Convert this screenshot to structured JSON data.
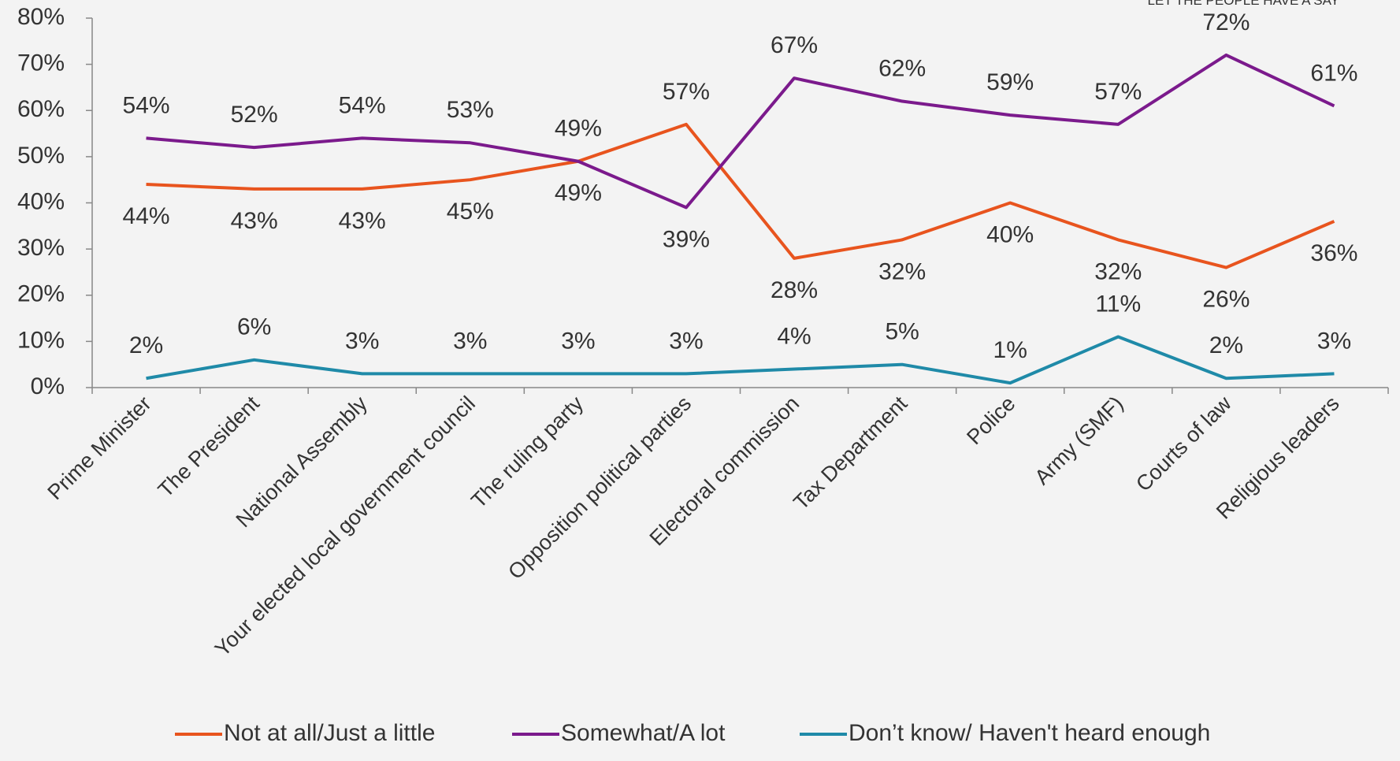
{
  "chart_data": {
    "type": "line",
    "annotations": [
      "LET THE PEOPLE HAVE A SAY"
    ],
    "categories": [
      "Prime Minister",
      "The President",
      "National Assembly",
      "Your elected local government council",
      "The ruling party",
      "Opposition political parties",
      "Electoral commission",
      "Tax Department",
      "Police",
      "Army (SMF)",
      "Courts of law",
      "Religious leaders"
    ],
    "series": [
      {
        "name": "Not at all/Just a little",
        "color": "#e8541e",
        "values": [
          44,
          43,
          43,
          45,
          49,
          57,
          28,
          32,
          40,
          32,
          26,
          36
        ],
        "value_labels": [
          "44%",
          "43%",
          "43%",
          "45%",
          "49%",
          "57%",
          "28%",
          "32%",
          "40%",
          "32%",
          "26%",
          "36%"
        ]
      },
      {
        "name": "Somewhat/A lot",
        "color": "#7b1a8c",
        "values": [
          54,
          52,
          54,
          53,
          49,
          39,
          67,
          62,
          59,
          57,
          72,
          61
        ],
        "value_labels": [
          "54%",
          "52%",
          "54%",
          "53%",
          "49%",
          "39%",
          "67%",
          "62%",
          "59%",
          "57%",
          "72%",
          "61%"
        ]
      },
      {
        "name": "Don’t know/ Haven't heard enough",
        "color": "#1f8aa8",
        "values": [
          2,
          6,
          3,
          3,
          3,
          3,
          4,
          5,
          1,
          11,
          2,
          3
        ],
        "value_labels": [
          "2%",
          "6%",
          "3%",
          "3%",
          "3%",
          "3%",
          "4%",
          "5%",
          "1%",
          "11%",
          "2%",
          "3%"
        ]
      }
    ],
    "ylim": [
      0,
      80
    ],
    "yticks": [
      {
        "value": 0,
        "label": "0%"
      },
      {
        "value": 10,
        "label": "10%"
      },
      {
        "value": 20,
        "label": "20%"
      },
      {
        "value": 30,
        "label": "30%"
      },
      {
        "value": 40,
        "label": "40%"
      },
      {
        "value": 50,
        "label": "50%"
      },
      {
        "value": 60,
        "label": "60%"
      },
      {
        "value": 70,
        "label": "70%"
      },
      {
        "value": 80,
        "label": "80%"
      }
    ],
    "legend": "bottom"
  }
}
